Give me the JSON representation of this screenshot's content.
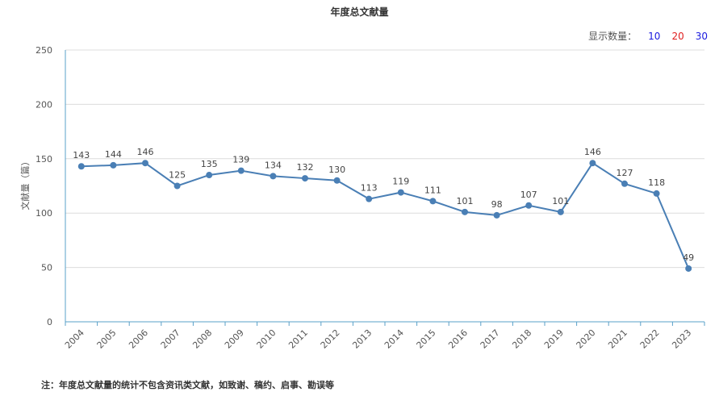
{
  "title": "年度总文献量",
  "selector": {
    "label": "显示数量：",
    "options": [
      {
        "label": "10",
        "color": "#1a1adf"
      },
      {
        "label": "20",
        "color": "#e02020"
      },
      {
        "label": "30",
        "color": "#1a1adf"
      }
    ]
  },
  "footnote": "注：年度总文献量的统计不包含资讯类文献，如致谢、稿约、启事、勘误等",
  "chart_data": {
    "type": "line",
    "ylabel": "文献量（篇）",
    "ylim": [
      0,
      250
    ],
    "yticks": [
      0,
      50,
      100,
      150,
      200,
      250
    ],
    "grid": true,
    "line_color": "#4a7fb5",
    "categories": [
      "2004",
      "2005",
      "2006",
      "2007",
      "2008",
      "2009",
      "2010",
      "2011",
      "2012",
      "2013",
      "2014",
      "2015",
      "2016",
      "2017",
      "2018",
      "2019",
      "2020",
      "2021",
      "2022",
      "2023"
    ],
    "values": [
      143,
      144,
      146,
      125,
      135,
      139,
      134,
      132,
      130,
      113,
      119,
      111,
      101,
      98,
      107,
      101,
      146,
      127,
      118,
      49
    ]
  }
}
